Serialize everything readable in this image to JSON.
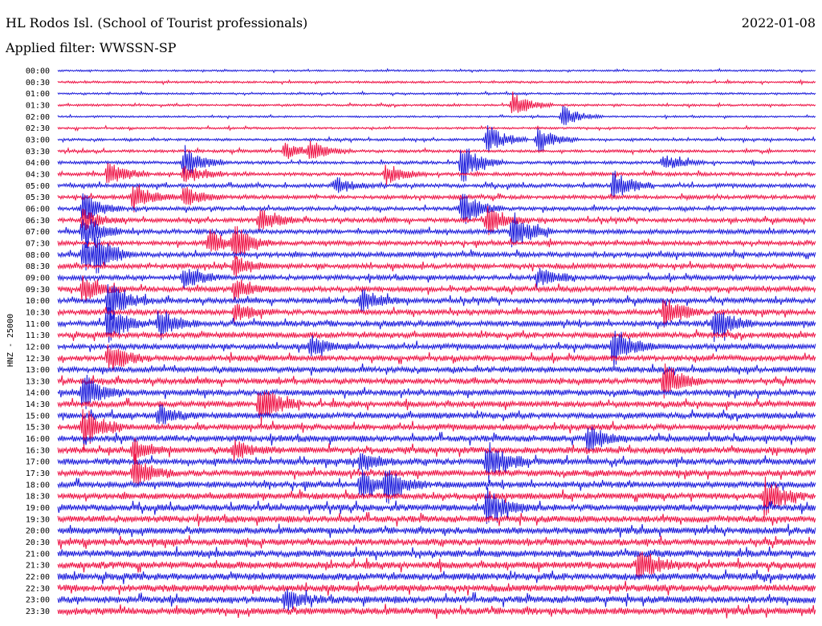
{
  "header": {
    "station": "HL Rodos Isl. (School of Tourist professionals)",
    "date": "2022-01-08",
    "filter_label": "Applied filter: WWSSN-SP"
  },
  "chart_data": {
    "type": "line",
    "title": "HL Rodos Isl. (School of Tourist professionals)",
    "ylabel": "HNZ - 25000",
    "grid": false,
    "legend": "none",
    "colors": [
      "#1a1adb",
      "#ee1144"
    ],
    "row_labels": [
      "00:00",
      "00:30",
      "01:00",
      "01:30",
      "02:00",
      "02:30",
      "03:00",
      "03:30",
      "04:00",
      "04:30",
      "05:00",
      "05:30",
      "06:00",
      "06:30",
      "07:00",
      "07:30",
      "08:00",
      "08:30",
      "09:00",
      "09:30",
      "10:00",
      "10:30",
      "11:00",
      "11:30",
      "12:00",
      "12:30",
      "13:00",
      "13:30",
      "14:00",
      "14:30",
      "15:00",
      "15:30",
      "16:00",
      "16:30",
      "17:00",
      "17:30",
      "18:00",
      "18:30",
      "19:00",
      "19:30",
      "20:00",
      "20:30",
      "21:00",
      "21:30",
      "22:00",
      "22:30",
      "23:00",
      "23:30"
    ],
    "row_noise_level": [
      0.25,
      0.3,
      0.28,
      0.3,
      0.25,
      0.3,
      0.35,
      0.4,
      0.45,
      0.5,
      0.55,
      0.55,
      0.55,
      0.6,
      0.65,
      0.65,
      0.7,
      0.7,
      0.7,
      0.75,
      0.75,
      0.75,
      0.8,
      0.8,
      0.8,
      0.8,
      0.8,
      0.8,
      0.85,
      0.85,
      0.85,
      0.85,
      0.9,
      0.9,
      0.9,
      0.9,
      0.9,
      0.9,
      0.95,
      0.95,
      0.95,
      0.95,
      1.0,
      1.0,
      1.0,
      1.0,
      1.0,
      1.0
    ],
    "bursts": [
      {
        "row": 3,
        "minute": 18,
        "amp": 1.3
      },
      {
        "row": 4,
        "minute": 20,
        "amp": 1.0
      },
      {
        "row": 6,
        "minute": 17,
        "amp": 1.6
      },
      {
        "row": 6,
        "minute": 19,
        "amp": 1.3
      },
      {
        "row": 7,
        "minute": 10,
        "amp": 1.0
      },
      {
        "row": 7,
        "minute": 9,
        "amp": 0.8
      },
      {
        "row": 8,
        "minute": 5,
        "amp": 1.6
      },
      {
        "row": 8,
        "minute": 16,
        "amp": 2.0
      },
      {
        "row": 8,
        "minute": 24,
        "amp": 0.8
      },
      {
        "row": 9,
        "minute": 2,
        "amp": 1.2
      },
      {
        "row": 9,
        "minute": 13,
        "amp": 1.0
      },
      {
        "row": 9,
        "minute": 5,
        "amp": 1.0
      },
      {
        "row": 10,
        "minute": 22,
        "amp": 1.5
      },
      {
        "row": 10,
        "minute": 11,
        "amp": 0.8
      },
      {
        "row": 11,
        "minute": 3,
        "amp": 1.5
      },
      {
        "row": 11,
        "minute": 5,
        "amp": 1.1
      },
      {
        "row": 12,
        "minute": 1,
        "amp": 1.5
      },
      {
        "row": 12,
        "minute": 16,
        "amp": 1.8
      },
      {
        "row": 13,
        "minute": 1,
        "amp": 1.0
      },
      {
        "row": 13,
        "minute": 8,
        "amp": 1.2
      },
      {
        "row": 13,
        "minute": 17,
        "amp": 1.5
      },
      {
        "row": 14,
        "minute": 1,
        "amp": 2.0
      },
      {
        "row": 14,
        "minute": 18,
        "amp": 2.0
      },
      {
        "row": 15,
        "minute": 6,
        "amp": 1.3
      },
      {
        "row": 15,
        "minute": 7,
        "amp": 1.5
      },
      {
        "row": 16,
        "minute": 1,
        "amp": 2.0
      },
      {
        "row": 16,
        "minute": 1.5,
        "amp": 1.5
      },
      {
        "row": 17,
        "minute": 7,
        "amp": 1.0
      },
      {
        "row": 18,
        "minute": 5,
        "amp": 1.3
      },
      {
        "row": 18,
        "minute": 19,
        "amp": 1.0
      },
      {
        "row": 19,
        "minute": 1,
        "amp": 1.5
      },
      {
        "row": 19,
        "minute": 7,
        "amp": 1.0
      },
      {
        "row": 20,
        "minute": 2,
        "amp": 2.0
      },
      {
        "row": 20,
        "minute": 12,
        "amp": 1.2
      },
      {
        "row": 21,
        "minute": 7,
        "amp": 1.0
      },
      {
        "row": 21,
        "minute": 24,
        "amp": 1.5
      },
      {
        "row": 22,
        "minute": 2,
        "amp": 2.0
      },
      {
        "row": 22,
        "minute": 4,
        "amp": 1.5
      },
      {
        "row": 22,
        "minute": 26,
        "amp": 2.0
      },
      {
        "row": 24,
        "minute": 10,
        "amp": 1.0
      },
      {
        "row": 24,
        "minute": 22,
        "amp": 2.0
      },
      {
        "row": 25,
        "minute": 2,
        "amp": 1.5
      },
      {
        "row": 27,
        "minute": 24,
        "amp": 1.8
      },
      {
        "row": 28,
        "minute": 1,
        "amp": 2.0
      },
      {
        "row": 29,
        "minute": 8,
        "amp": 2.0
      },
      {
        "row": 30,
        "minute": 4,
        "amp": 1.0
      },
      {
        "row": 31,
        "minute": 1,
        "amp": 2.0
      },
      {
        "row": 32,
        "minute": 21,
        "amp": 1.3
      },
      {
        "row": 33,
        "minute": 3,
        "amp": 1.0
      },
      {
        "row": 33,
        "minute": 7,
        "amp": 1.0
      },
      {
        "row": 34,
        "minute": 12,
        "amp": 1.0
      },
      {
        "row": 34,
        "minute": 17,
        "amp": 2.0
      },
      {
        "row": 35,
        "minute": 3,
        "amp": 1.5
      },
      {
        "row": 36,
        "minute": 12,
        "amp": 1.3
      },
      {
        "row": 36,
        "minute": 13,
        "amp": 1.8
      },
      {
        "row": 37,
        "minute": 28,
        "amp": 2.0
      },
      {
        "row": 38,
        "minute": 17,
        "amp": 1.8
      },
      {
        "row": 43,
        "minute": 23,
        "amp": 1.8
      },
      {
        "row": 46,
        "minute": 9,
        "amp": 1.0
      }
    ]
  }
}
